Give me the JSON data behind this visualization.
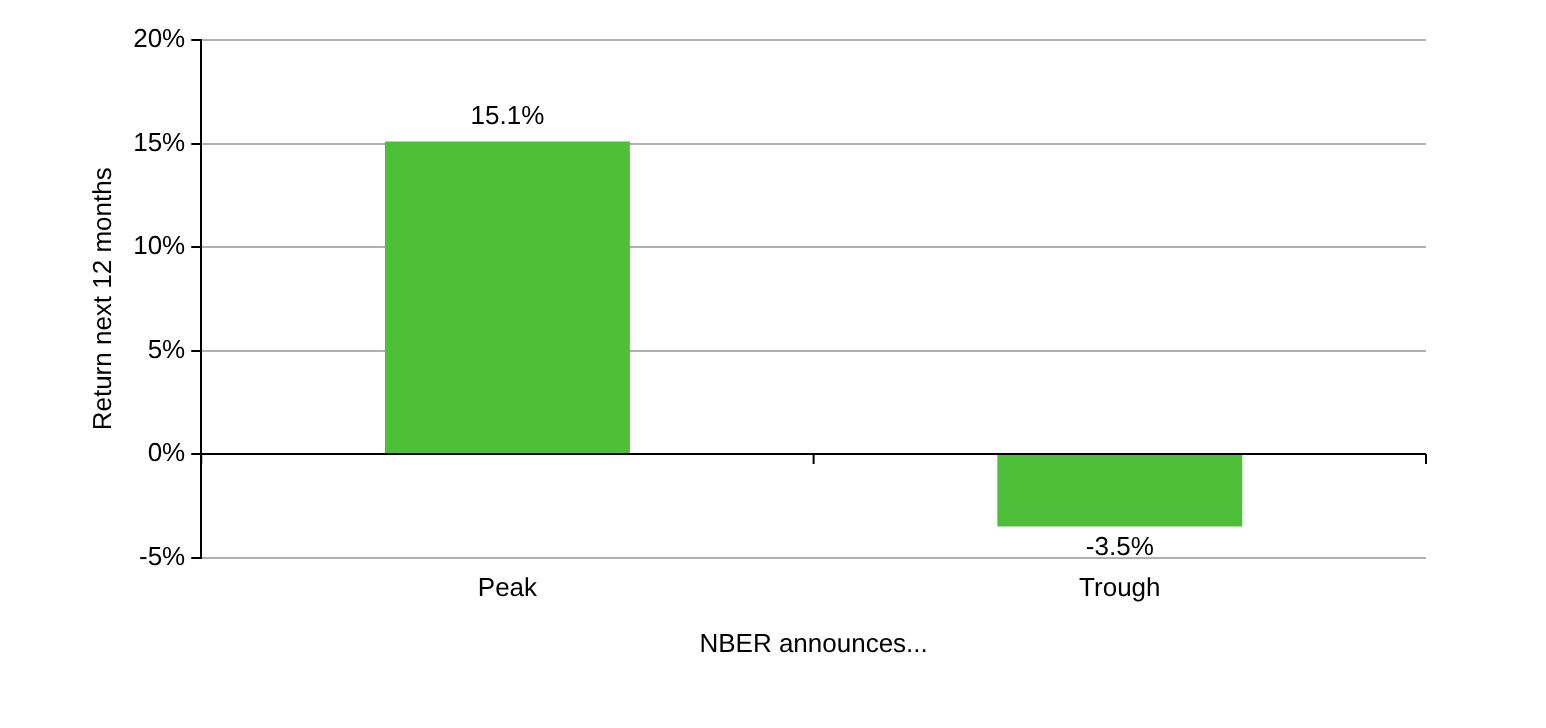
{
  "chart_data": {
    "type": "bar",
    "ylabel": "Return next 12 months",
    "xlabel": "NBER announces...",
    "categories": [
      "Peak",
      "Trough"
    ],
    "values": [
      15.1,
      -3.5
    ],
    "value_labels": [
      "15.1%",
      "-3.5%"
    ],
    "color": "#4dbf38",
    "ylim": [
      -5,
      20
    ],
    "yticks": [
      {
        "value": -5,
        "label": "-5%"
      },
      {
        "value": 0,
        "label": "0%"
      },
      {
        "value": 5,
        "label": "5%"
      },
      {
        "value": 10,
        "label": "10%"
      },
      {
        "value": 15,
        "label": "15%"
      },
      {
        "value": 20,
        "label": "20%"
      }
    ],
    "grid": "y",
    "legend": false
  }
}
